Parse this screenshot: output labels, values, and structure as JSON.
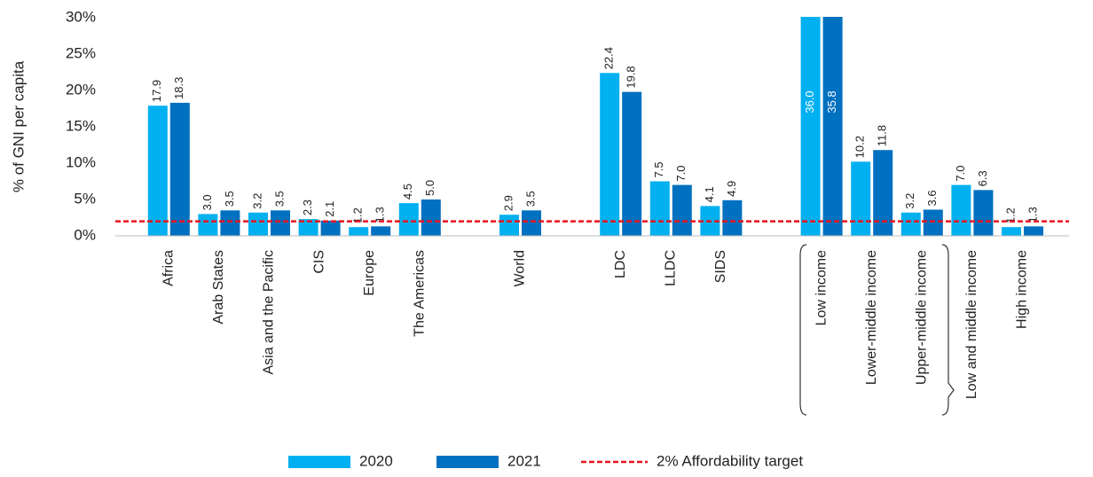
{
  "chart_data": {
    "type": "bar",
    "y_label": "% of GNI per capita",
    "categories": [
      "Africa",
      "Arab States",
      "Asia and the Pacific",
      "CIS",
      "Europe",
      "The Americas",
      null,
      "World",
      null,
      "LDC",
      "LLDC",
      "SIDS",
      null,
      "Low income",
      "Lower-middle income",
      "Upper-middle income",
      "Low and middle income",
      "High income"
    ],
    "series": [
      {
        "name": "2020",
        "color": "#00b0f0",
        "values": [
          17.9,
          3.0,
          3.2,
          2.3,
          1.2,
          4.5,
          null,
          2.9,
          null,
          22.4,
          7.5,
          4.1,
          null,
          36.0,
          10.2,
          3.2,
          7.0,
          1.2
        ],
        "value_labels": [
          "17.9",
          "3.0",
          "3.2",
          "2.3",
          "1.2",
          "4.5",
          null,
          "2.9",
          null,
          "22.4",
          "7.5",
          "4.1",
          null,
          "36.0",
          "10.2",
          "3.2",
          "7.0",
          "1.2"
        ]
      },
      {
        "name": "2021",
        "color": "#0070c0",
        "values": [
          18.3,
          3.5,
          3.5,
          2.1,
          1.3,
          5.0,
          null,
          3.5,
          null,
          19.8,
          7.0,
          4.9,
          null,
          35.8,
          11.8,
          3.6,
          6.3,
          1.3
        ],
        "value_labels": [
          "18.3",
          "3.5",
          "3.5",
          "2.1",
          "1.3",
          "5.0",
          null,
          "3.5",
          null,
          "19.8",
          "7.0",
          "4.9",
          null,
          "35.8",
          "11.8",
          "3.6",
          "6.3",
          "1.3"
        ]
      }
    ],
    "target": {
      "name": "2% Affordability target",
      "value": 2,
      "color": "#e8141c"
    },
    "ylim": [
      0,
      30
    ],
    "yticks": [
      {
        "value": 0,
        "label": "0%"
      },
      {
        "value": 5,
        "label": "5%"
      },
      {
        "value": 10,
        "label": "10%"
      },
      {
        "value": 15,
        "label": "15%"
      },
      {
        "value": 20,
        "label": "20%"
      },
      {
        "value": 25,
        "label": "25%"
      },
      {
        "value": 30,
        "label": "30%"
      }
    ]
  }
}
